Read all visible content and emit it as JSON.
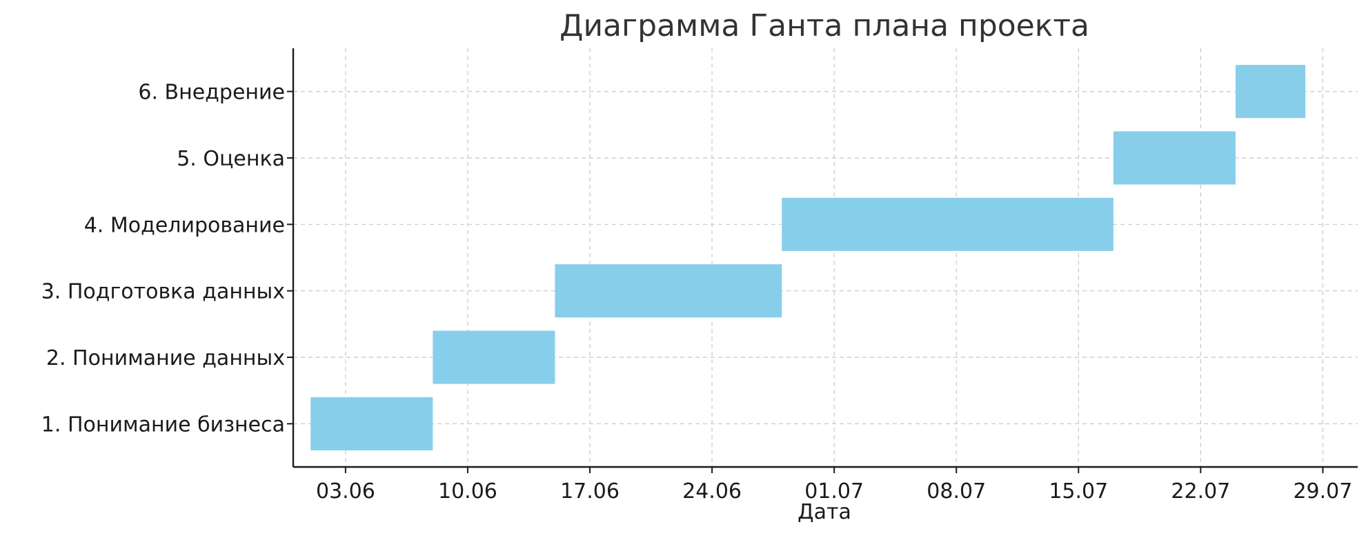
{
  "chart_data": {
    "type": "gantt",
    "title": "Диаграмма Ганта плана проекта",
    "xlabel": "Дата",
    "ylabel": "",
    "year": 2024,
    "xlim": [
      "2024-05-31",
      "2024-07-31"
    ],
    "x_ticks": [
      {
        "date": "2024-06-03",
        "label": "03.06"
      },
      {
        "date": "2024-06-10",
        "label": "10.06"
      },
      {
        "date": "2024-06-17",
        "label": "17.06"
      },
      {
        "date": "2024-06-24",
        "label": "24.06"
      },
      {
        "date": "2024-07-01",
        "label": "01.07"
      },
      {
        "date": "2024-07-08",
        "label": "08.07"
      },
      {
        "date": "2024-07-15",
        "label": "15.07"
      },
      {
        "date": "2024-07-22",
        "label": "22.07"
      },
      {
        "date": "2024-07-29",
        "label": "29.07"
      }
    ],
    "tasks": [
      {
        "label": "1. Понимание бизнеса",
        "start": "2024-06-01",
        "end": "2024-06-08"
      },
      {
        "label": "2. Понимание данных",
        "start": "2024-06-08",
        "end": "2024-06-15"
      },
      {
        "label": "3. Подготовка данных",
        "start": "2024-06-15",
        "end": "2024-06-28"
      },
      {
        "label": "4. Моделирование",
        "start": "2024-06-28",
        "end": "2024-07-17"
      },
      {
        "label": "5. Оценка",
        "start": "2024-07-17",
        "end": "2024-07-24"
      },
      {
        "label": "6. Внедрение",
        "start": "2024-07-24",
        "end": "2024-07-28"
      }
    ],
    "bar_color": "#87ceeb",
    "grid": true,
    "legend": "none"
  }
}
